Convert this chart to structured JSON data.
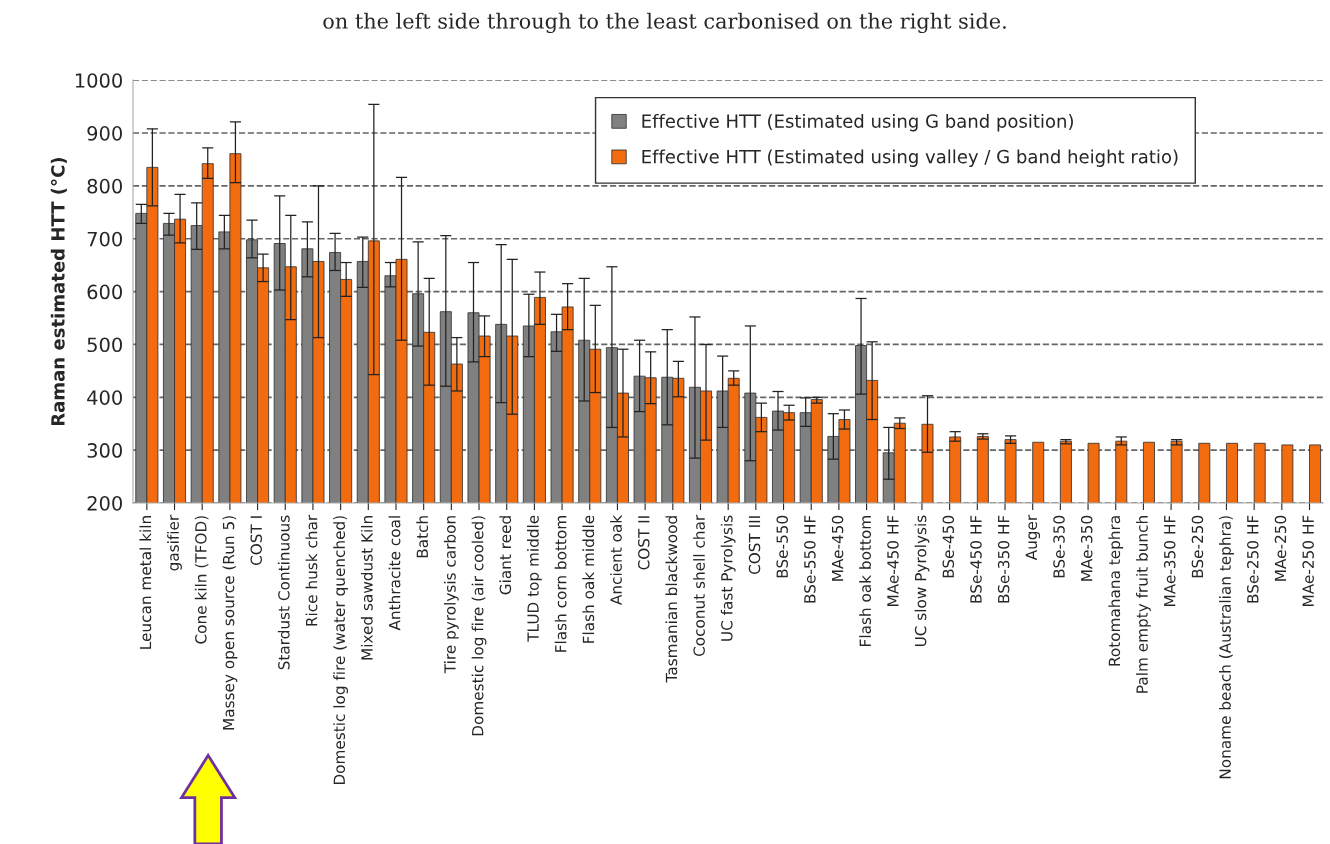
{
  "chart_data": {
    "type": "bar",
    "ylabel": "Raman estimated HTT (°C)",
    "annotations": [
      "on the left side through to the least carbonised on the right side."
    ],
    "categories": [
      "Leucan metal kiln",
      "gasifier",
      "Cone kiln (TFOD)",
      "Massey open source (Run 5)",
      "COST I",
      "Stardust Continuous",
      "Rice husk char",
      "Domestic log fire (water quenched)",
      "Mixed sawdust Kiln",
      "Anthracite coal",
      "Batch",
      "Tire pyrolysis carbon",
      "Domestic log fire (air cooled)",
      "Giant reed",
      "TLUD top middle",
      "Flash corn bottom",
      "Flash oak middle",
      "Ancient oak",
      "COST II",
      "Tasmanian blackwood",
      "Coconut shell char",
      "UC fast Pyrolysis",
      "COST III",
      "BSe-550",
      "BSe-550 HF",
      "MAe-450",
      "Flash oak bottom",
      "MAe-450 HF",
      "UC slow Pyrolysis",
      "BSe-450",
      "BSe-450 HF",
      "BSe-350 HF",
      "Auger",
      "BSe-350",
      "MAe-350",
      "Rotomahana tephra",
      "Palm empty fruit bunch",
      "MAe-350 HF",
      "BSe-250",
      "Noname beach (Australian tephra)",
      "BSe-250 HF",
      "MAe-250",
      "MAe-250 HF"
    ],
    "series": [
      {
        "name": "Effective HTT (Estimated using G band position)",
        "color": "#808080",
        "values": [
          748,
          729,
          725,
          713,
          698,
          691,
          681,
          674,
          657,
          630,
          596,
          562,
          560,
          538,
          535,
          524,
          508,
          494,
          440,
          438,
          419,
          412,
          408,
          374,
          371,
          326,
          498,
          295,
          null,
          null,
          null,
          null,
          null,
          null,
          null,
          null,
          null,
          null,
          null,
          null,
          null,
          null,
          null
        ],
        "errors": [
          [
            729,
            765
          ],
          [
            707,
            748
          ],
          [
            680,
            768
          ],
          [
            681,
            744
          ],
          [
            664,
            735
          ],
          [
            603,
            781
          ],
          [
            628,
            732
          ],
          [
            640,
            710
          ],
          [
            608,
            703
          ],
          [
            609,
            655
          ],
          [
            497,
            694
          ],
          [
            421,
            706
          ],
          [
            467,
            655
          ],
          [
            390,
            689
          ],
          [
            477,
            595
          ],
          [
            487,
            557
          ],
          [
            393,
            625
          ],
          [
            343,
            647
          ],
          [
            373,
            508
          ],
          [
            348,
            528
          ],
          [
            285,
            552
          ],
          [
            343,
            478
          ],
          [
            280,
            535
          ],
          [
            338,
            411
          ],
          [
            345,
            399
          ],
          [
            283,
            369
          ],
          [
            406,
            587
          ],
          [
            245,
            343
          ],
          null,
          null,
          null,
          null,
          null,
          null,
          null,
          null,
          null,
          null,
          null,
          null,
          null,
          null,
          null
        ]
      },
      {
        "name": "Effective HTT (Estimated using valley / G band height ratio)",
        "color": "#f26b0f",
        "values": [
          835,
          737,
          842,
          861,
          645,
          647,
          657,
          623,
          696,
          661,
          523,
          463,
          516,
          516,
          589,
          571,
          491,
          408,
          437,
          436,
          412,
          436,
          362,
          371,
          396,
          358,
          432,
          351,
          349,
          325,
          326,
          320,
          315,
          317,
          313,
          317,
          315,
          317,
          313,
          313,
          313,
          310,
          310
        ],
        "errors": [
          [
            762,
            908
          ],
          [
            692,
            784
          ],
          [
            814,
            872
          ],
          [
            806,
            921
          ],
          [
            619,
            671
          ],
          [
            547,
            744
          ],
          [
            513,
            800
          ],
          [
            591,
            655
          ],
          [
            443,
            954
          ],
          [
            508,
            816
          ],
          [
            423,
            625
          ],
          [
            412,
            513
          ],
          [
            477,
            554
          ],
          [
            368,
            661
          ],
          [
            538,
            637
          ],
          [
            528,
            615
          ],
          [
            409,
            574
          ],
          [
            325,
            491
          ],
          [
            388,
            486
          ],
          [
            401,
            468
          ],
          [
            319,
            500
          ],
          [
            423,
            450
          ],
          [
            335,
            389
          ],
          [
            357,
            385
          ],
          [
            389,
            400
          ],
          [
            340,
            376
          ],
          [
            358,
            505
          ],
          [
            341,
            361
          ],
          [
            296,
            403
          ],
          [
            317,
            335
          ],
          [
            321,
            331
          ],
          [
            313,
            327
          ],
          null,
          [
            312,
            320
          ],
          null,
          [
            310,
            325
          ],
          null,
          [
            310,
            320
          ],
          null,
          null,
          null,
          null,
          null
        ]
      }
    ],
    "ylim": [
      200,
      1000
    ],
    "yticks": [
      200,
      300,
      400,
      500,
      600,
      700,
      800,
      900,
      1000
    ],
    "grid": "y",
    "legend": "top right"
  }
}
